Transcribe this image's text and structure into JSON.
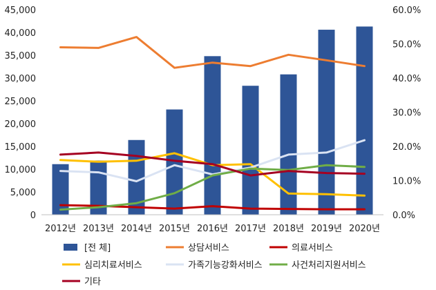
{
  "chart_data": {
    "type": "bar",
    "categories": [
      "2012년",
      "2013년",
      "2014년",
      "2015년",
      "2016년",
      "2017년",
      "2018년",
      "2019년",
      "2020년"
    ],
    "bar_series": {
      "name": "[전 체]",
      "color": "#2e5597",
      "values": [
        11100,
        11900,
        16400,
        23100,
        34800,
        28300,
        30800,
        40600,
        41300
      ]
    },
    "line_series": [
      {
        "name": "상담서비스",
        "color": "#ed7d31",
        "values": [
          49.0,
          48.8,
          52.0,
          43.0,
          44.5,
          43.5,
          46.8,
          45.2,
          43.5
        ]
      },
      {
        "name": "의료서비스",
        "color": "#c00000",
        "values": [
          2.8,
          2.6,
          2.2,
          1.8,
          2.5,
          1.8,
          1.7,
          1.6,
          1.6
        ]
      },
      {
        "name": "심리치료서비스",
        "color": "#ffc000",
        "values": [
          16.0,
          15.5,
          15.8,
          18.0,
          14.5,
          14.8,
          6.2,
          6.0,
          5.6
        ]
      },
      {
        "name": "가족기능강화서비스",
        "color": "#dae3f3",
        "values": [
          12.8,
          12.4,
          9.8,
          14.5,
          11.8,
          13.8,
          17.6,
          18.2,
          21.8
        ]
      },
      {
        "name": "사건처리지원서비스",
        "color": "#70ad47",
        "values": [
          1.5,
          2.2,
          3.4,
          6.3,
          11.5,
          13.5,
          13.1,
          14.5,
          14.0
        ]
      },
      {
        "name": "기타",
        "color": "#a50021",
        "values": [
          17.6,
          18.2,
          17.2,
          15.8,
          14.8,
          11.5,
          12.8,
          12.2,
          12.0
        ]
      }
    ],
    "left_axis": {
      "ylim": [
        0,
        45000
      ],
      "ticks": [
        "0",
        "5,000",
        "10,000",
        "15,000",
        "20,000",
        "25,000",
        "30,000",
        "35,000",
        "40,000",
        "45,000"
      ]
    },
    "right_axis": {
      "ylim": [
        0,
        60
      ],
      "ticks": [
        "0.0%",
        "10.0%",
        "20.0%",
        "30.0%",
        "40.0%",
        "50.0%",
        "60.0%"
      ]
    },
    "grid": false,
    "legend_position": "bottom"
  }
}
